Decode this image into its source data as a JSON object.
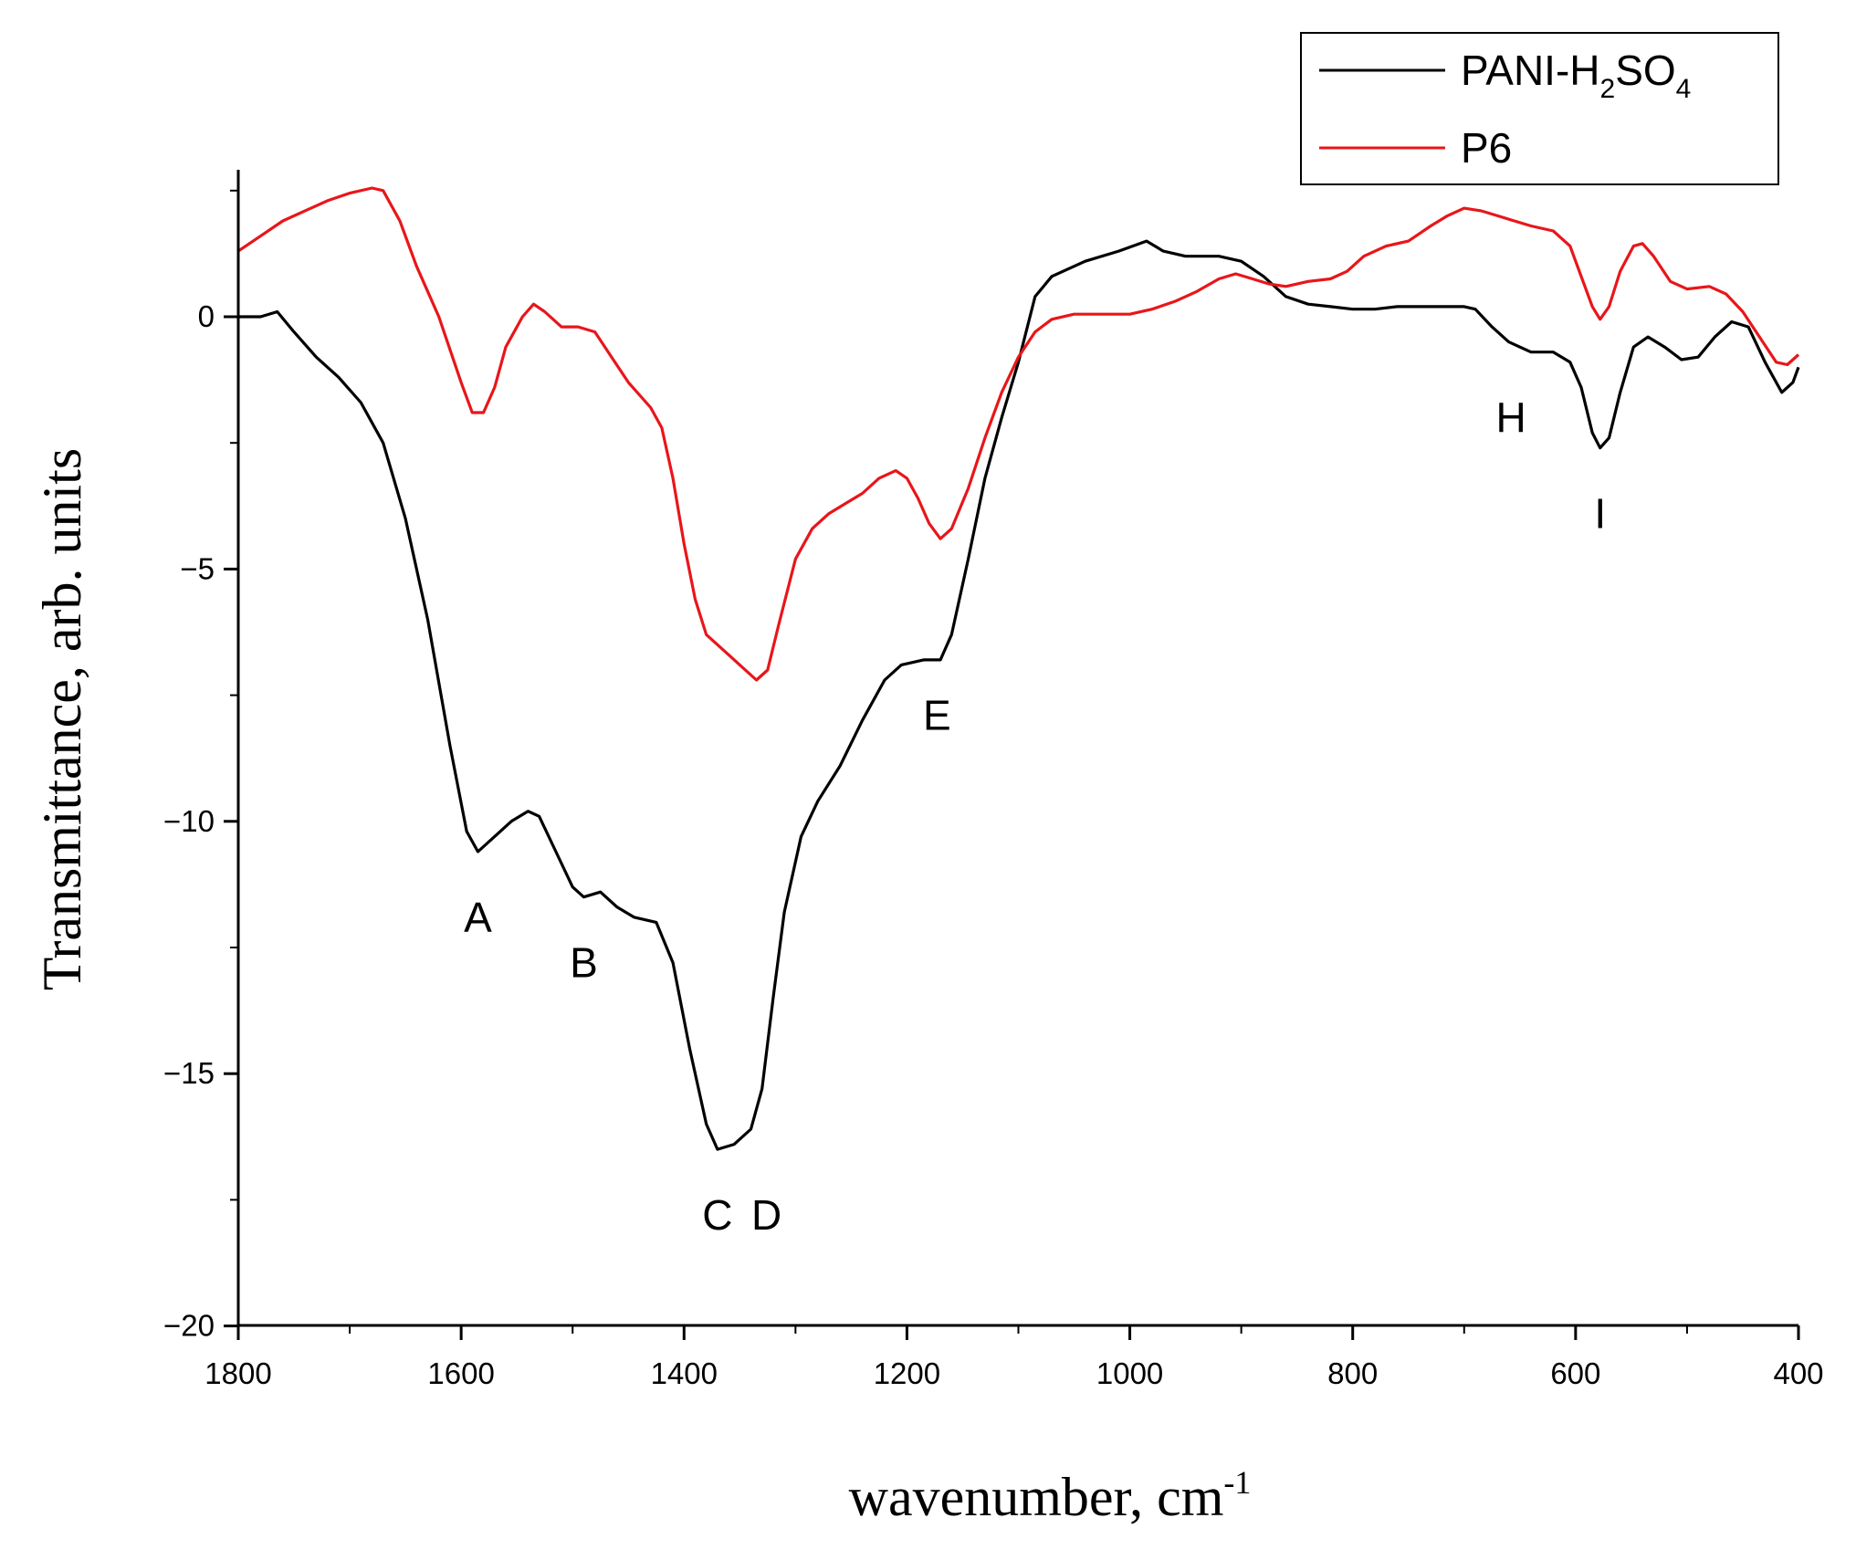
{
  "chart_data": {
    "type": "line",
    "xlabel": "wavenumber, cm",
    "xlabel_sup": "-1",
    "ylabel": "Transmittance, arb. units",
    "xlim": [
      1800,
      400
    ],
    "ylim": [
      -20,
      3
    ],
    "x_reversed": true,
    "grid": false,
    "legend_position": "top-right",
    "x_ticks": [
      1800,
      1600,
      1400,
      1200,
      1000,
      800,
      600,
      400
    ],
    "x_tick_labels": [
      "1800",
      "1600",
      "1400",
      "1200",
      "1000",
      "800",
      "600",
      "400"
    ],
    "y_ticks": [
      0,
      -5,
      -10,
      -15,
      -20
    ],
    "y_tick_labels": [
      "0",
      "-5",
      "-10",
      "-15",
      "-20"
    ],
    "series": [
      {
        "name": "PANI-H2SO4",
        "legend_parts": [
          "PANI-H",
          "2",
          "SO",
          "4"
        ],
        "color": "#000000",
        "points": [
          [
            1800,
            0.0
          ],
          [
            1780,
            0.0
          ],
          [
            1765,
            0.1
          ],
          [
            1750,
            -0.3
          ],
          [
            1730,
            -0.8
          ],
          [
            1710,
            -1.2
          ],
          [
            1690,
            -1.7
          ],
          [
            1670,
            -2.5
          ],
          [
            1650,
            -4.0
          ],
          [
            1630,
            -6.0
          ],
          [
            1610,
            -8.5
          ],
          [
            1595,
            -10.2
          ],
          [
            1585,
            -10.6
          ],
          [
            1570,
            -10.3
          ],
          [
            1555,
            -10.0
          ],
          [
            1540,
            -9.8
          ],
          [
            1530,
            -9.9
          ],
          [
            1515,
            -10.6
          ],
          [
            1500,
            -11.3
          ],
          [
            1490,
            -11.5
          ],
          [
            1475,
            -11.4
          ],
          [
            1460,
            -11.7
          ],
          [
            1445,
            -11.9
          ],
          [
            1425,
            -12.0
          ],
          [
            1410,
            -12.8
          ],
          [
            1395,
            -14.5
          ],
          [
            1380,
            -16.0
          ],
          [
            1370,
            -16.5
          ],
          [
            1355,
            -16.4
          ],
          [
            1340,
            -16.1
          ],
          [
            1330,
            -15.3
          ],
          [
            1320,
            -13.5
          ],
          [
            1310,
            -11.8
          ],
          [
            1295,
            -10.3
          ],
          [
            1280,
            -9.6
          ],
          [
            1260,
            -8.9
          ],
          [
            1240,
            -8.0
          ],
          [
            1220,
            -7.2
          ],
          [
            1205,
            -6.9
          ],
          [
            1185,
            -6.8
          ],
          [
            1170,
            -6.8
          ],
          [
            1160,
            -6.3
          ],
          [
            1145,
            -4.8
          ],
          [
            1130,
            -3.2
          ],
          [
            1115,
            -2.0
          ],
          [
            1100,
            -0.9
          ],
          [
            1085,
            0.4
          ],
          [
            1070,
            0.8
          ],
          [
            1040,
            1.1
          ],
          [
            1010,
            1.3
          ],
          [
            985,
            1.5
          ],
          [
            970,
            1.3
          ],
          [
            950,
            1.2
          ],
          [
            920,
            1.2
          ],
          [
            900,
            1.1
          ],
          [
            880,
            0.8
          ],
          [
            860,
            0.4
          ],
          [
            840,
            0.25
          ],
          [
            820,
            0.2
          ],
          [
            800,
            0.15
          ],
          [
            780,
            0.15
          ],
          [
            760,
            0.2
          ],
          [
            740,
            0.2
          ],
          [
            720,
            0.2
          ],
          [
            700,
            0.2
          ],
          [
            690,
            0.15
          ],
          [
            675,
            -0.2
          ],
          [
            660,
            -0.5
          ],
          [
            640,
            -0.7
          ],
          [
            620,
            -0.7
          ],
          [
            605,
            -0.9
          ],
          [
            595,
            -1.4
          ],
          [
            585,
            -2.3
          ],
          [
            578,
            -2.6
          ],
          [
            570,
            -2.4
          ],
          [
            560,
            -1.5
          ],
          [
            548,
            -0.6
          ],
          [
            535,
            -0.4
          ],
          [
            520,
            -0.6
          ],
          [
            505,
            -0.85
          ],
          [
            490,
            -0.8
          ],
          [
            475,
            -0.4
          ],
          [
            460,
            -0.1
          ],
          [
            445,
            -0.2
          ],
          [
            430,
            -0.9
          ],
          [
            415,
            -1.5
          ],
          [
            405,
            -1.3
          ],
          [
            400,
            -1.0
          ]
        ]
      },
      {
        "name": "P6",
        "legend_parts": [
          "P6"
        ],
        "color": "#e8161a",
        "points": [
          [
            1800,
            1.3
          ],
          [
            1780,
            1.6
          ],
          [
            1760,
            1.9
          ],
          [
            1740,
            2.1
          ],
          [
            1720,
            2.3
          ],
          [
            1700,
            2.45
          ],
          [
            1680,
            2.55
          ],
          [
            1670,
            2.5
          ],
          [
            1655,
            1.9
          ],
          [
            1640,
            1.0
          ],
          [
            1620,
            0.0
          ],
          [
            1600,
            -1.3
          ],
          [
            1590,
            -1.9
          ],
          [
            1580,
            -1.9
          ],
          [
            1570,
            -1.4
          ],
          [
            1560,
            -0.6
          ],
          [
            1545,
            0.0
          ],
          [
            1535,
            0.25
          ],
          [
            1525,
            0.1
          ],
          [
            1510,
            -0.2
          ],
          [
            1495,
            -0.2
          ],
          [
            1480,
            -0.3
          ],
          [
            1465,
            -0.8
          ],
          [
            1450,
            -1.3
          ],
          [
            1430,
            -1.8
          ],
          [
            1420,
            -2.2
          ],
          [
            1410,
            -3.2
          ],
          [
            1400,
            -4.5
          ],
          [
            1390,
            -5.6
          ],
          [
            1380,
            -6.3
          ],
          [
            1365,
            -6.6
          ],
          [
            1350,
            -6.9
          ],
          [
            1335,
            -7.2
          ],
          [
            1325,
            -7.0
          ],
          [
            1315,
            -6.1
          ],
          [
            1300,
            -4.8
          ],
          [
            1285,
            -4.2
          ],
          [
            1270,
            -3.9
          ],
          [
            1255,
            -3.7
          ],
          [
            1240,
            -3.5
          ],
          [
            1225,
            -3.2
          ],
          [
            1210,
            -3.05
          ],
          [
            1200,
            -3.2
          ],
          [
            1190,
            -3.6
          ],
          [
            1180,
            -4.1
          ],
          [
            1170,
            -4.4
          ],
          [
            1160,
            -4.2
          ],
          [
            1145,
            -3.4
          ],
          [
            1130,
            -2.4
          ],
          [
            1115,
            -1.5
          ],
          [
            1100,
            -0.8
          ],
          [
            1085,
            -0.3
          ],
          [
            1070,
            -0.05
          ],
          [
            1050,
            0.05
          ],
          [
            1020,
            0.05
          ],
          [
            1000,
            0.05
          ],
          [
            980,
            0.15
          ],
          [
            960,
            0.3
          ],
          [
            940,
            0.5
          ],
          [
            920,
            0.75
          ],
          [
            905,
            0.85
          ],
          [
            890,
            0.75
          ],
          [
            875,
            0.65
          ],
          [
            860,
            0.6
          ],
          [
            840,
            0.7
          ],
          [
            820,
            0.75
          ],
          [
            805,
            0.9
          ],
          [
            790,
            1.2
          ],
          [
            770,
            1.4
          ],
          [
            750,
            1.5
          ],
          [
            730,
            1.8
          ],
          [
            715,
            2.0
          ],
          [
            700,
            2.15
          ],
          [
            685,
            2.1
          ],
          [
            670,
            2.0
          ],
          [
            655,
            1.9
          ],
          [
            640,
            1.8
          ],
          [
            620,
            1.7
          ],
          [
            605,
            1.4
          ],
          [
            595,
            0.8
          ],
          [
            585,
            0.2
          ],
          [
            578,
            -0.05
          ],
          [
            570,
            0.2
          ],
          [
            560,
            0.9
          ],
          [
            548,
            1.4
          ],
          [
            540,
            1.45
          ],
          [
            530,
            1.2
          ],
          [
            515,
            0.7
          ],
          [
            500,
            0.55
          ],
          [
            480,
            0.6
          ],
          [
            465,
            0.45
          ],
          [
            450,
            0.1
          ],
          [
            435,
            -0.4
          ],
          [
            420,
            -0.9
          ],
          [
            410,
            -0.95
          ],
          [
            400,
            -0.75
          ]
        ]
      }
    ],
    "annotations": [
      {
        "label": "A",
        "x": 1585,
        "y": -11.9
      },
      {
        "label": "B",
        "x": 1490,
        "y": -12.8
      },
      {
        "label": "C",
        "x": 1370,
        "y": -17.8
      },
      {
        "label": "D",
        "x": 1326,
        "y": -17.8
      },
      {
        "label": "E",
        "x": 1173,
        "y": -7.9
      },
      {
        "label": "H",
        "x": 658,
        "y": -2.0
      },
      {
        "label": "I",
        "x": 578,
        "y": -3.9
      }
    ]
  }
}
